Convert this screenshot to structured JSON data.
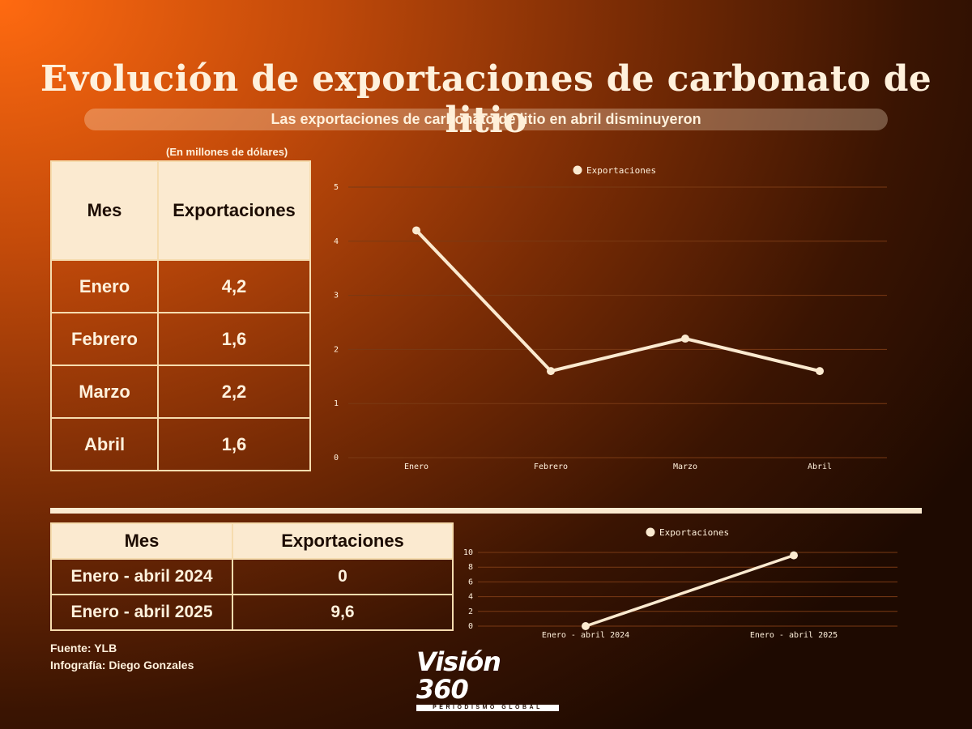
{
  "header": {
    "title": "Evolución de exportaciones de carbonato de litio",
    "subtitle": "Las exportaciones de carbonato de litio en  abril disminuyeron"
  },
  "units_note": "(En millones de dólares)",
  "table_monthly": {
    "headers": [
      "Mes",
      "Exportaciones"
    ],
    "rows": [
      {
        "mes": "Enero",
        "valor": "4,2"
      },
      {
        "mes": "Febrero",
        "valor": "1,6"
      },
      {
        "mes": "Marzo",
        "valor": "2,2"
      },
      {
        "mes": "Abril",
        "valor": "1,6"
      }
    ]
  },
  "table_period": {
    "headers": [
      "Mes",
      "Exportaciones"
    ],
    "rows": [
      {
        "mes": "Enero - abril 2024",
        "valor": "0"
      },
      {
        "mes": "Enero - abril 2025",
        "valor": "9,6"
      }
    ]
  },
  "credits": {
    "source": "Fuente: YLB",
    "author": "Infografía: Diego Gonzales"
  },
  "logo": {
    "name": "Visión 360",
    "tagline": "PERIODISMO GLOBAL"
  },
  "colors": {
    "line": "#fbead0",
    "grid": "#7a3a14",
    "text": "#fff1dc"
  },
  "chart_data": [
    {
      "type": "line",
      "categories": [
        "Enero",
        "Febrero",
        "Marzo",
        "Abril"
      ],
      "series": [
        {
          "name": "Exportaciones",
          "values": [
            4.2,
            1.6,
            2.2,
            1.6
          ]
        }
      ],
      "yticks": [
        0,
        1,
        2,
        3,
        4,
        5
      ],
      "ylim": [
        0,
        5
      ],
      "grid": true,
      "legend": "top-center"
    },
    {
      "type": "line",
      "categories": [
        "Enero - abril 2024",
        "Enero - abril 2025"
      ],
      "series": [
        {
          "name": "Exportaciones",
          "values": [
            0,
            9.6
          ]
        }
      ],
      "yticks": [
        0,
        2,
        4,
        6,
        8,
        10
      ],
      "ylim": [
        0,
        10
      ],
      "grid": true,
      "legend": "top-center"
    }
  ]
}
